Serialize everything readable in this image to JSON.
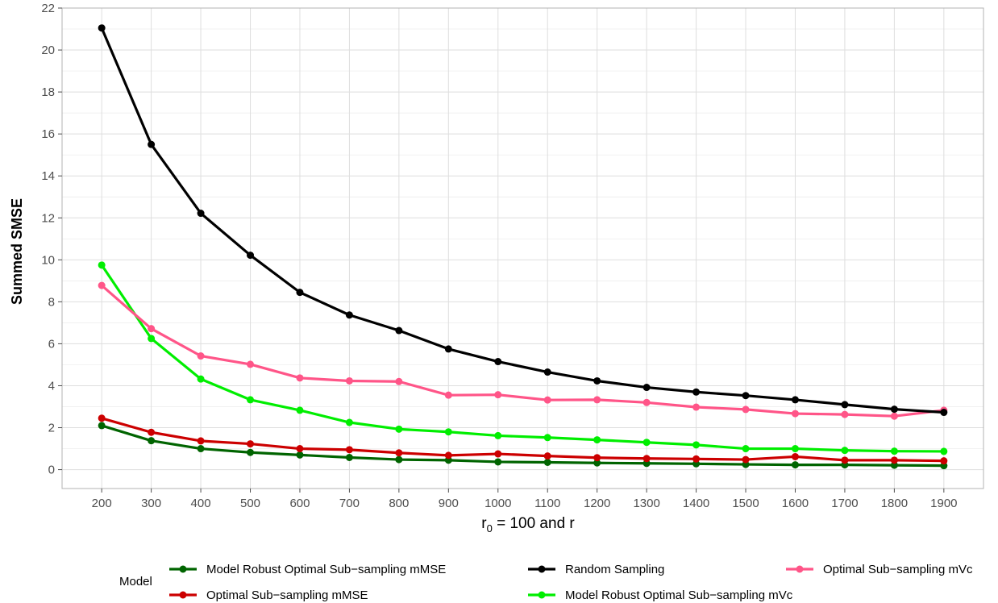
{
  "chart_data": {
    "type": "line",
    "title": "",
    "xlabel": {
      "main": "r",
      "sub": "0",
      "rest": " = 100 and r"
    },
    "ylabel": "Summed SMSE",
    "x": [
      200,
      300,
      400,
      500,
      600,
      700,
      800,
      900,
      1000,
      1100,
      1200,
      1300,
      1400,
      1500,
      1600,
      1700,
      1800,
      1900
    ],
    "xlim": [
      120,
      1980
    ],
    "ylim": [
      -0.9,
      22
    ],
    "yticks": [
      0,
      2,
      4,
      6,
      8,
      10,
      12,
      14,
      16,
      18,
      20,
      22
    ],
    "grid": true,
    "legend": {
      "title": "Model",
      "position": "bottom",
      "order": [
        0,
        2,
        4,
        1,
        3
      ]
    },
    "series": [
      {
        "name": "Model Robust Optimal Sub−sampling mMSE",
        "color": "#006400",
        "values": [
          2.1,
          1.38,
          1.0,
          0.82,
          0.7,
          0.58,
          0.48,
          0.45,
          0.37,
          0.35,
          0.32,
          0.3,
          0.28,
          0.25,
          0.23,
          0.23,
          0.21,
          0.19
        ]
      },
      {
        "name": "Model Robust Optimal Sub−sampling mVc",
        "color": "#00EE00",
        "values": [
          9.75,
          6.25,
          4.32,
          3.33,
          2.83,
          2.25,
          1.93,
          1.8,
          1.62,
          1.53,
          1.42,
          1.3,
          1.18,
          1.0,
          1.0,
          0.92,
          0.88,
          0.87
        ]
      },
      {
        "name": "Optimal Sub−sampling mMSE",
        "color": "#CC0000",
        "values": [
          2.45,
          1.78,
          1.37,
          1.23,
          1.0,
          0.95,
          0.8,
          0.68,
          0.75,
          0.65,
          0.57,
          0.53,
          0.51,
          0.48,
          0.62,
          0.45,
          0.45,
          0.42
        ]
      },
      {
        "name": "Optimal Sub−sampling mVc",
        "color": "#FF5588",
        "values": [
          8.78,
          6.72,
          5.42,
          5.02,
          4.37,
          4.23,
          4.2,
          3.55,
          3.57,
          3.32,
          3.33,
          3.2,
          2.98,
          2.87,
          2.67,
          2.63,
          2.55,
          2.83
        ]
      },
      {
        "name": "Random Sampling",
        "color": "#000000",
        "values": [
          21.05,
          15.5,
          12.22,
          10.22,
          8.45,
          7.37,
          6.63,
          5.75,
          5.15,
          4.65,
          4.23,
          3.92,
          3.7,
          3.53,
          3.33,
          3.1,
          2.88,
          2.73
        ]
      }
    ]
  }
}
